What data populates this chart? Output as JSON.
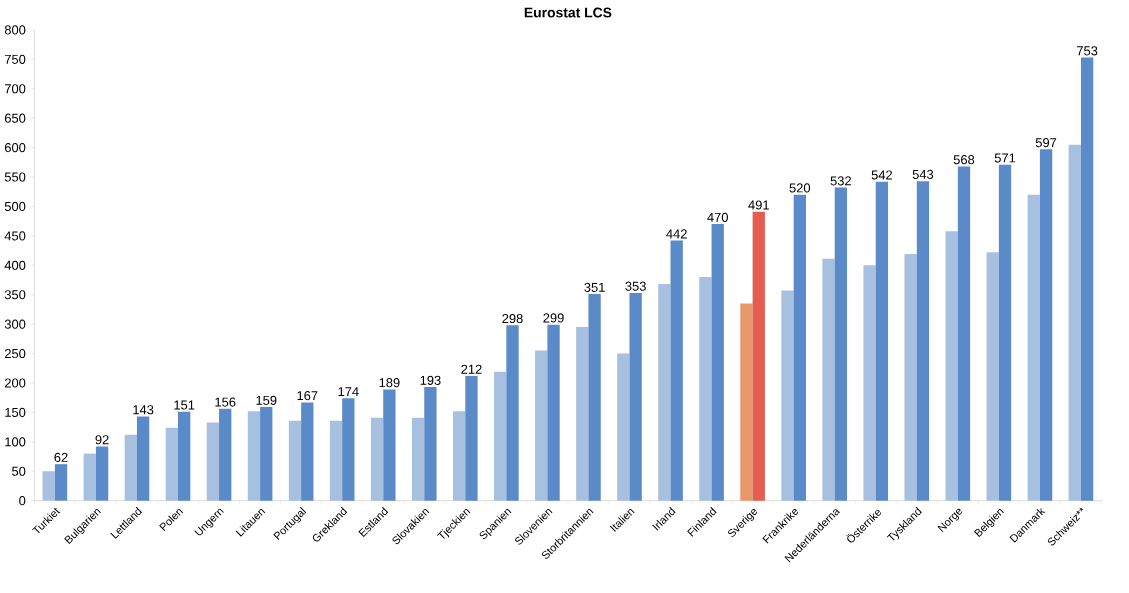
{
  "chart_data": {
    "type": "bar",
    "title": "Eurostat LCS",
    "categories": [
      "Turkiet",
      "Bulgarien",
      "Lettland",
      "Polen",
      "Ungern",
      "Litauen",
      "Portugal",
      "Grekland",
      "Estland",
      "Slovakien",
      "Tjeckien",
      "Spanien",
      "Slovenien",
      "Storbritannien",
      "Italien",
      "Irland",
      "Finland",
      "Sverige",
      "Frankrike",
      "Nederländerna",
      "Österrike",
      "Tyskland",
      "Norge",
      "Belgien",
      "Danmark",
      "Schweiz**"
    ],
    "series": [
      {
        "colors": [
          "#a7c0e0",
          "#a7c0e0",
          "#a7c0e0",
          "#a7c0e0",
          "#a7c0e0",
          "#a7c0e0",
          "#a7c0e0",
          "#a7c0e0",
          "#a7c0e0",
          "#a7c0e0",
          "#a7c0e0",
          "#a7c0e0",
          "#a7c0e0",
          "#a7c0e0",
          "#a7c0e0",
          "#a7c0e0",
          "#a7c0e0",
          "#e8976a",
          "#a7c0e0",
          "#a7c0e0",
          "#a7c0e0",
          "#a7c0e0",
          "#a7c0e0",
          "#a7c0e0",
          "#a7c0e0",
          "#a7c0e0"
        ],
        "values": [
          50,
          80,
          112,
          124,
          133,
          152,
          136,
          136,
          141,
          141,
          152,
          219,
          255,
          295,
          250,
          368,
          380,
          335,
          357,
          411,
          400,
          419,
          458,
          422,
          520,
          605
        ]
      },
      {
        "colors": [
          "#5b8ac8",
          "#5b8ac8",
          "#5b8ac8",
          "#5b8ac8",
          "#5b8ac8",
          "#5b8ac8",
          "#5b8ac8",
          "#5b8ac8",
          "#5b8ac8",
          "#5b8ac8",
          "#5b8ac8",
          "#5b8ac8",
          "#5b8ac8",
          "#5b8ac8",
          "#5b8ac8",
          "#5b8ac8",
          "#5b8ac8",
          "#e45d50",
          "#5b8ac8",
          "#5b8ac8",
          "#5b8ac8",
          "#5b8ac8",
          "#5b8ac8",
          "#5b8ac8",
          "#5b8ac8",
          "#5b8ac8"
        ],
        "values": [
          62,
          92,
          143,
          151,
          156,
          159,
          167,
          174,
          189,
          193,
          212,
          298,
          299,
          351,
          353,
          442,
          470,
          491,
          520,
          532,
          542,
          543,
          568,
          571,
          597,
          753
        ],
        "value_labels": [
          "62",
          "92",
          "143",
          "151",
          "156",
          "159",
          "167",
          "174",
          "189",
          "193",
          "212",
          "298",
          "299",
          "351",
          "353",
          "442",
          "470",
          "491",
          "520",
          "532",
          "542",
          "543",
          "568",
          "571",
          "597",
          "753"
        ]
      }
    ],
    "ylim": [
      0,
      800
    ],
    "yticks": [
      0,
      50,
      100,
      150,
      200,
      250,
      300,
      350,
      400,
      450,
      500,
      550,
      600,
      650,
      700,
      750,
      800
    ],
    "grid": false
  }
}
